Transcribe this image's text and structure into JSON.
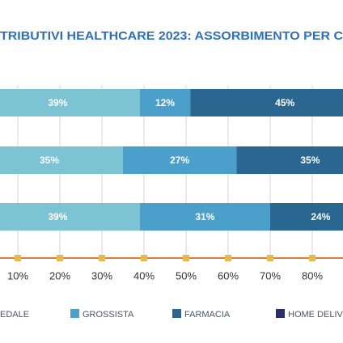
{
  "chart_data": {
    "type": "stacked-barh",
    "title": "TRIBUTIVI HEALTHCARE 2023: ASSORBIMENTO PER C",
    "series": [
      {
        "name": "EDALE",
        "color": "#7cc3d3",
        "values": [
          39,
          35,
          39
        ],
        "value_labels": [
          "39%",
          "35%",
          "39%"
        ]
      },
      {
        "name": "GROSSISTA",
        "color": "#4a9fcb",
        "values": [
          12,
          27,
          31
        ],
        "value_labels": [
          "12%",
          "27%",
          "31%"
        ]
      },
      {
        "name": "FARMACIA",
        "color": "#2a6790",
        "values": [
          45,
          35,
          24
        ],
        "value_labels": [
          "45%",
          "35%",
          "24%"
        ]
      },
      {
        "name": "HOME DELIVE",
        "color": "#2b2f6b",
        "values": [
          null,
          null,
          null
        ]
      }
    ],
    "xlim": [
      0,
      100
    ],
    "xticks": [
      {
        "value": 10,
        "label": "10%"
      },
      {
        "value": 20,
        "label": "20%"
      },
      {
        "value": 30,
        "label": "30%"
      },
      {
        "value": 40,
        "label": "40%"
      },
      {
        "value": 50,
        "label": "50%"
      },
      {
        "value": 60,
        "label": "60%"
      },
      {
        "value": 70,
        "label": "70%"
      },
      {
        "value": 80,
        "label": "80%"
      }
    ],
    "grid": true
  }
}
